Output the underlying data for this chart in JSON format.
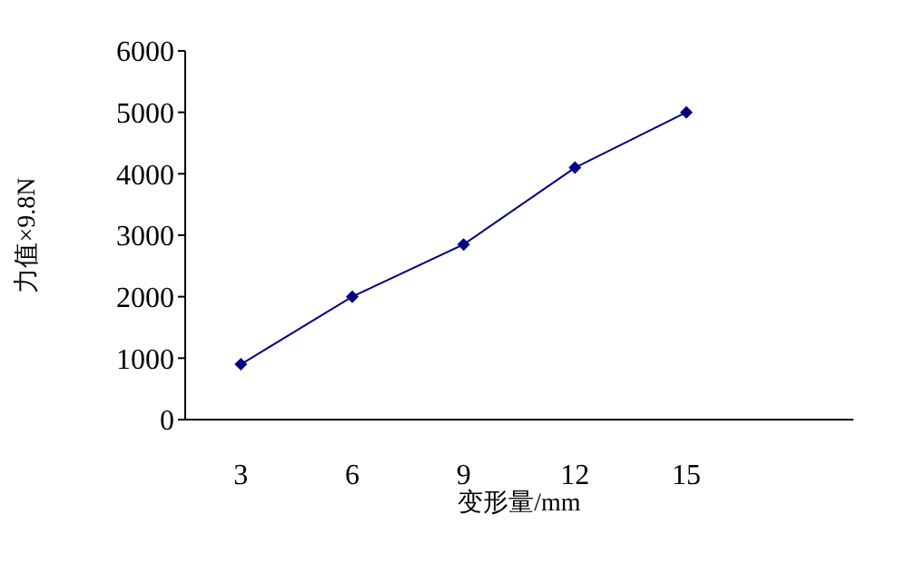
{
  "chart_data": {
    "type": "line",
    "xlabel": "变形量/mm",
    "ylabel": "力值×9.8N",
    "categories": [
      "3",
      "6",
      "9",
      "12",
      "15",
      null
    ],
    "series": [
      {
        "color": "#000080",
        "values": [
          900,
          2000,
          2850,
          4100,
          5000,
          null
        ]
      }
    ],
    "ylim": [
      0,
      6000
    ],
    "yticks": [
      0,
      1000,
      2000,
      3000,
      4000,
      5000,
      6000
    ],
    "grid": false,
    "marker": "diamond",
    "line_style": "solid"
  }
}
